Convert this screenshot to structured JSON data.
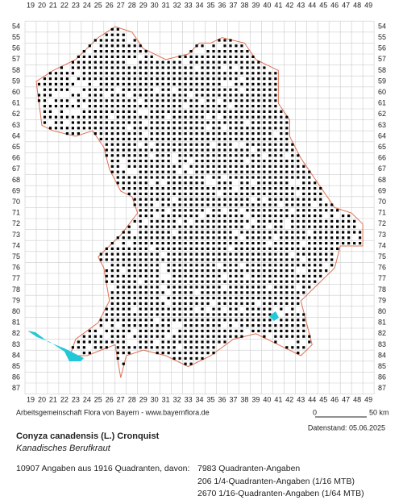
{
  "map": {
    "columns": [
      19,
      20,
      21,
      22,
      23,
      24,
      25,
      26,
      27,
      28,
      29,
      30,
      31,
      32,
      33,
      34,
      35,
      36,
      37,
      38,
      39,
      40,
      41,
      42,
      43,
      44,
      45,
      46,
      47,
      48,
      49
    ],
    "rows": [
      54,
      55,
      56,
      57,
      58,
      59,
      60,
      61,
      62,
      63,
      64,
      65,
      66,
      67,
      68,
      69,
      70,
      71,
      72,
      73,
      74,
      75,
      76,
      77,
      78,
      79,
      80,
      81,
      82,
      83,
      84,
      85,
      86,
      87
    ],
    "credit": "Arbeitsgemeinschaft Flora von Bayern - www.bayernflora.de",
    "scale_start": "0",
    "scale_end": "50 km",
    "data_date": "Datenstand: 05.06.2025"
  },
  "species": {
    "name": "Conyza canadensis (L.) Cronquist",
    "german_name": "Kanadisches Berufkraut"
  },
  "stats": {
    "summary": "10907 Angaben aus 1916 Quadranten, davon:",
    "lines": [
      "7983 Quadranten-Angaben",
      "206 1/4-Quadranten-Angaben (1/16 MTB)",
      "2670 1/16-Quadranten-Angaben (1/64 MTB)"
    ]
  }
}
